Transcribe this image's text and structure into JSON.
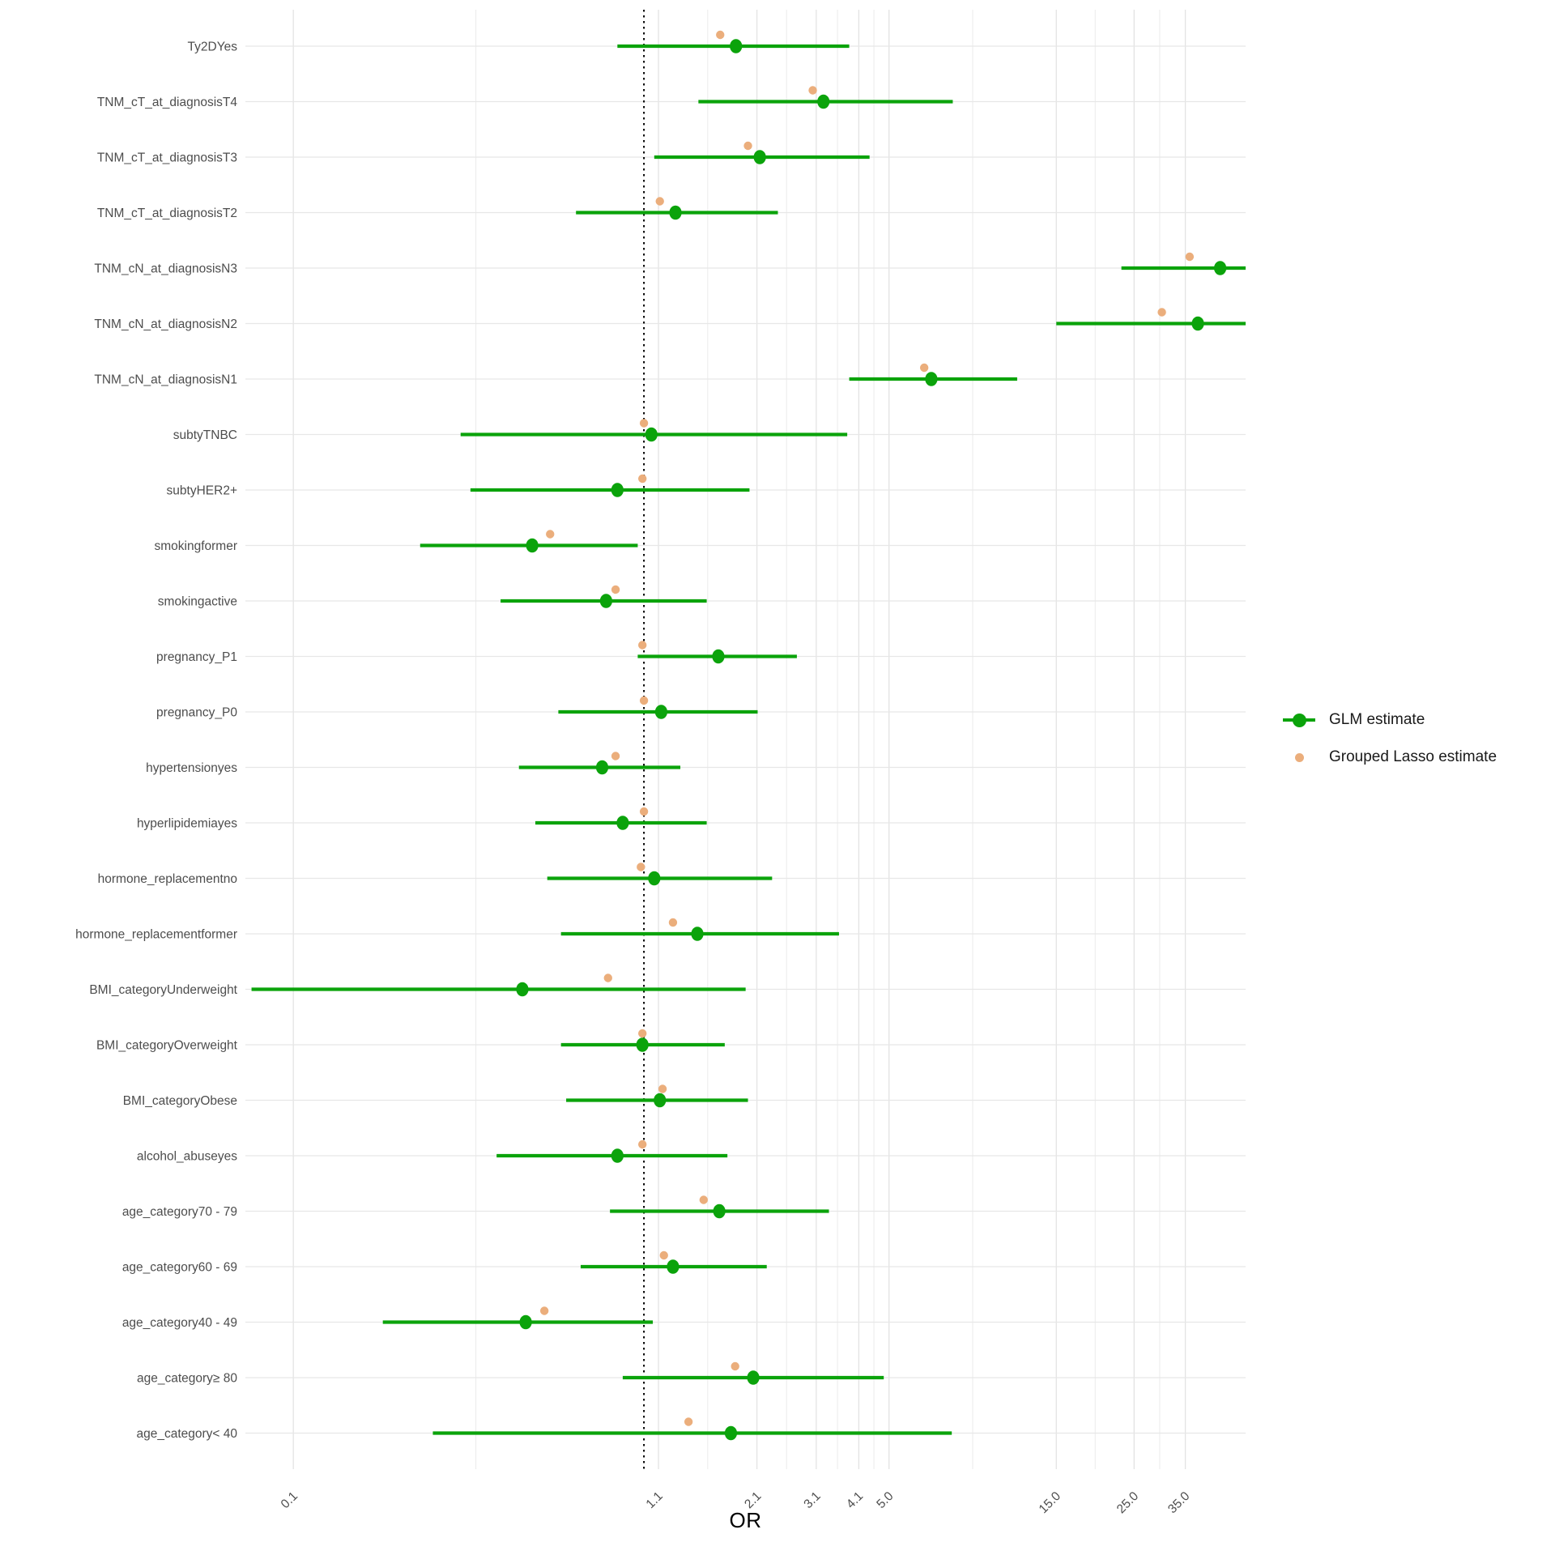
{
  "figure": {
    "xlabel": "OR",
    "legend": {
      "glm_label": "GLM estimate",
      "lasso_label": "Grouped Lasso estimate"
    }
  },
  "colors": {
    "glm": "#0ba30b",
    "lasso": "#ebae7c",
    "grid_major": "#e3e3e3",
    "grid_minor": "#ebebeb",
    "row_grid": "#e7e7e7",
    "axis_text": "#4d4d4d",
    "ref_line": "#000000"
  },
  "chart_data": {
    "type": "scatter",
    "subtype": "forest-plot",
    "title": "",
    "xlabel": "OR",
    "ylabel": "",
    "x_scale": "log",
    "x_domain": [
      0.073,
      52
    ],
    "x_ticks": [
      0.1,
      1.1,
      2.1,
      3.1,
      4.1,
      5.0,
      15.0,
      25.0,
      35.0
    ],
    "x_tick_labels": [
      "0.1",
      "1.1",
      "2.1",
      "3.1",
      "4.1",
      "5.0",
      "15.0",
      "25.0",
      "35.0"
    ],
    "reference_line_x": 1.0,
    "grid": true,
    "legend_position": "right",
    "legend": [
      {
        "name": "GLM estimate",
        "marker": "point-range",
        "color": "#0ba30b"
      },
      {
        "name": "Grouped Lasso estimate",
        "marker": "point",
        "color": "#ebae7c"
      }
    ],
    "series_note": "glm = GLM odds ratio with 95% CI [lo, hi]; lasso = Grouped Lasso odds ratio (no CI); rows listed top to bottom",
    "rows": [
      {
        "label": "Ty2DYes",
        "glm": 1.83,
        "lo": 0.84,
        "hi": 3.85,
        "hi_clipped": false,
        "lasso": 1.65
      },
      {
        "label": "TNM_cT_at_diagnosisT4",
        "glm": 3.25,
        "lo": 1.43,
        "hi": 7.6,
        "hi_clipped": false,
        "lasso": 3.03
      },
      {
        "label": "TNM_cT_at_diagnosisT3",
        "glm": 2.14,
        "lo": 1.07,
        "hi": 4.4,
        "hi_clipped": false,
        "lasso": 1.98
      },
      {
        "label": "TNM_cT_at_diagnosisT2",
        "glm": 1.23,
        "lo": 0.64,
        "hi": 2.41,
        "hi_clipped": false,
        "lasso": 1.11
      },
      {
        "label": "TNM_cN_at_diagnosisN3",
        "glm": 44.0,
        "lo": 23.0,
        "hi": 52.0,
        "hi_clipped": true,
        "lasso": 36.0
      },
      {
        "label": "TNM_cN_at_diagnosisN2",
        "glm": 38.0,
        "lo": 15.0,
        "hi": 52.0,
        "hi_clipped": true,
        "lasso": 30.0
      },
      {
        "label": "TNM_cN_at_diagnosisN1",
        "glm": 6.6,
        "lo": 3.85,
        "hi": 11.6,
        "hi_clipped": false,
        "lasso": 6.3
      },
      {
        "label": "subtyTNBC",
        "glm": 1.05,
        "lo": 0.3,
        "hi": 3.8,
        "hi_clipped": false,
        "lasso": 1.0
      },
      {
        "label": "subtyHER2+",
        "glm": 0.84,
        "lo": 0.32,
        "hi": 2.0,
        "hi_clipped": false,
        "lasso": 0.99
      },
      {
        "label": "smokingformer",
        "glm": 0.48,
        "lo": 0.23,
        "hi": 0.96,
        "hi_clipped": false,
        "lasso": 0.54
      },
      {
        "label": "smokingactive",
        "glm": 0.78,
        "lo": 0.39,
        "hi": 1.51,
        "hi_clipped": false,
        "lasso": 0.83
      },
      {
        "label": "pregnancy_P1",
        "glm": 1.63,
        "lo": 0.96,
        "hi": 2.73,
        "hi_clipped": false,
        "lasso": 0.99
      },
      {
        "label": "pregnancy_P0",
        "glm": 1.12,
        "lo": 0.57,
        "hi": 2.11,
        "hi_clipped": false,
        "lasso": 1.0
      },
      {
        "label": "hypertensionyes",
        "glm": 0.76,
        "lo": 0.44,
        "hi": 1.27,
        "hi_clipped": false,
        "lasso": 0.83
      },
      {
        "label": "hyperlipidemiayes",
        "glm": 0.87,
        "lo": 0.49,
        "hi": 1.51,
        "hi_clipped": false,
        "lasso": 1.0
      },
      {
        "label": "hormone_replacementno",
        "glm": 1.07,
        "lo": 0.53,
        "hi": 2.32,
        "hi_clipped": false,
        "lasso": 0.98
      },
      {
        "label": "hormone_replacementformer",
        "glm": 1.42,
        "lo": 0.58,
        "hi": 3.6,
        "hi_clipped": false,
        "lasso": 1.21
      },
      {
        "label": "BMI_categoryUnderweight",
        "glm": 0.45,
        "lo": 0.076,
        "hi": 1.95,
        "hi_clipped": false,
        "lasso": 0.79
      },
      {
        "label": "BMI_categoryOverweight",
        "glm": 0.99,
        "lo": 0.58,
        "hi": 1.7,
        "hi_clipped": false,
        "lasso": 0.99
      },
      {
        "label": "BMI_categoryObese",
        "glm": 1.11,
        "lo": 0.6,
        "hi": 1.98,
        "hi_clipped": false,
        "lasso": 1.13
      },
      {
        "label": "alcohol_abuseyes",
        "glm": 0.84,
        "lo": 0.38,
        "hi": 1.73,
        "hi_clipped": false,
        "lasso": 0.99
      },
      {
        "label": "age_category70 - 79",
        "glm": 1.64,
        "lo": 0.8,
        "hi": 3.37,
        "hi_clipped": false,
        "lasso": 1.48
      },
      {
        "label": "age_category60 - 69",
        "glm": 1.21,
        "lo": 0.66,
        "hi": 2.24,
        "hi_clipped": false,
        "lasso": 1.14
      },
      {
        "label": "age_category40 - 49",
        "glm": 0.46,
        "lo": 0.18,
        "hi": 1.06,
        "hi_clipped": false,
        "lasso": 0.52
      },
      {
        "label": "age_category≥ 80",
        "glm": 2.05,
        "lo": 0.87,
        "hi": 4.83,
        "hi_clipped": false,
        "lasso": 1.82
      },
      {
        "label": "age_category< 40",
        "glm": 1.77,
        "lo": 0.25,
        "hi": 7.55,
        "hi_clipped": false,
        "lasso": 1.34
      }
    ]
  }
}
